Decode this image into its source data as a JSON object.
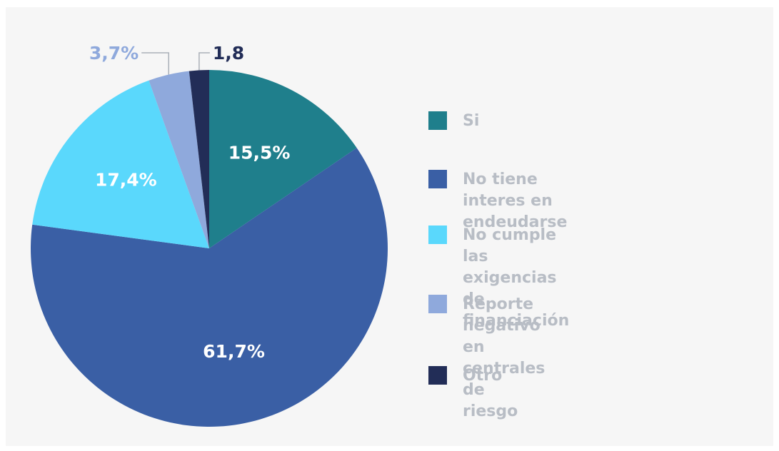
{
  "chart_data": {
    "type": "pie",
    "categories": [
      "Si",
      "No tiene interes en endeudarse",
      "No cumple las exigencias\nde financiación",
      "Reporte negativo en centrales\nde riesgo",
      "Otro"
    ],
    "values": [
      15.5,
      61.7,
      17.4,
      3.7,
      1.8
    ],
    "value_labels": [
      "15,5%",
      "61,7%",
      "17,4%",
      "3,7%",
      "1,8"
    ],
    "colors": [
      "#1f7f8c",
      "#3a5fa5",
      "#5ad8fc",
      "#8fa9dc",
      "#222d57"
    ]
  }
}
